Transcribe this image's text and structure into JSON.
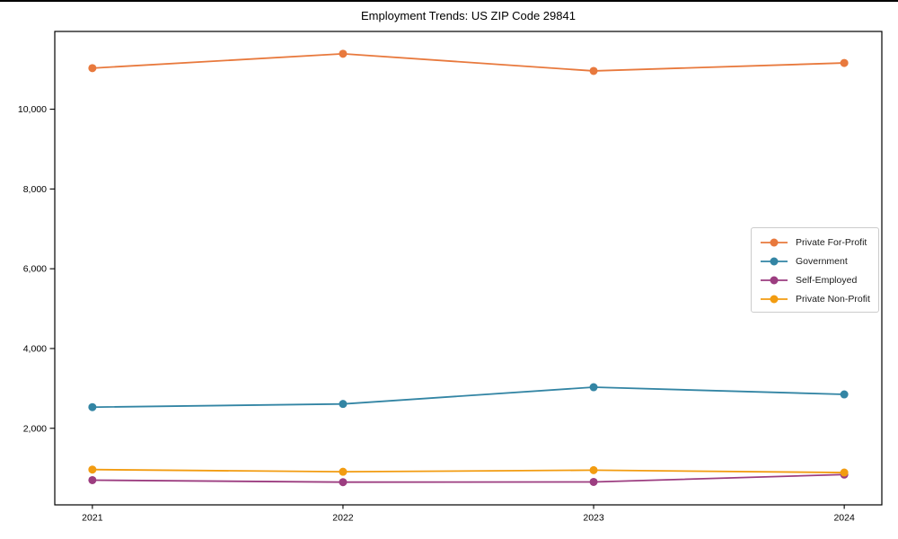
{
  "figure": {
    "background": "#ffffff"
  },
  "chart_data": {
    "type": "line",
    "title": "Employment Trends: US ZIP Code 29841",
    "categories": [
      "2021",
      "2022",
      "2023",
      "2024"
    ],
    "series": [
      {
        "name": "Private For-Profit",
        "color": "#E8793D",
        "values": [
          11030,
          11390,
          10960,
          11160
        ]
      },
      {
        "name": "Government",
        "color": "#3385A4",
        "values": [
          2530,
          2610,
          3030,
          2850
        ]
      },
      {
        "name": "Self-Employed",
        "color": "#9C3D80",
        "values": [
          700,
          650,
          655,
          840
        ]
      },
      {
        "name": "Private Non-Profit",
        "color": "#F29C11",
        "values": [
          965,
          910,
          950,
          890
        ]
      }
    ],
    "xlabel": "",
    "ylabel": "",
    "ylim": [
      80,
      11950
    ],
    "y_ticks": [
      {
        "value": 2000,
        "label": "2,000"
      },
      {
        "value": 4000,
        "label": "4,000"
      },
      {
        "value": 6000,
        "label": "6,000"
      },
      {
        "value": 8000,
        "label": "8,000"
      },
      {
        "value": 10000,
        "label": "10,000"
      }
    ],
    "grid": false,
    "legend_position": "center right",
    "marker": "circle",
    "axis_color": "#000000"
  }
}
